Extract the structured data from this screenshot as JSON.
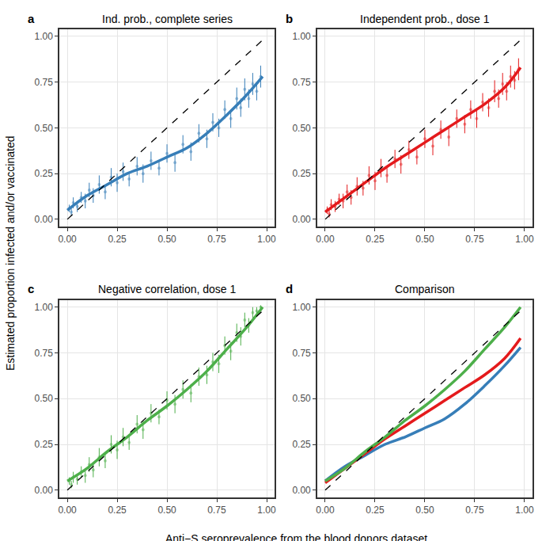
{
  "chart_data": {
    "type": "scatter",
    "x_label": "Anti−S seroprevalence from the blood donors dataset",
    "y_label": "Estimated proportion infected and/or vaccinated",
    "xlim": [
      -0.04,
      1.04
    ],
    "ylim": [
      -0.04,
      1.04
    ],
    "xticks": [
      {
        "value": 0,
        "label": "0.00"
      },
      {
        "value": 0.25,
        "label": "0.25"
      },
      {
        "value": 0.5,
        "label": "0.50"
      },
      {
        "value": 0.75,
        "label": "0.75"
      },
      {
        "value": 1,
        "label": "1.00"
      }
    ],
    "yticks": [
      {
        "value": 0,
        "label": "0.00"
      },
      {
        "value": 0.25,
        "label": "0.25"
      },
      {
        "value": 0.5,
        "label": "0.50"
      },
      {
        "value": 0.75,
        "label": "0.75"
      },
      {
        "value": 1,
        "label": "1.00"
      }
    ],
    "grid": true,
    "panels": [
      {
        "label": "a",
        "title": "Ind. prob., complete series",
        "series": [
          {
            "type": "scatter",
            "color": "#377eb8",
            "marker": "circle",
            "x": [
              0.01,
              0.02,
              0.03,
              0.05,
              0.07,
              0.09,
              0.11,
              0.13,
              0.16,
              0.19,
              0.22,
              0.25,
              0.28,
              0.31,
              0.35,
              0.38,
              0.42,
              0.46,
              0.5,
              0.54,
              0.58,
              0.62,
              0.66,
              0.7,
              0.73,
              0.76,
              0.79,
              0.82,
              0.85,
              0.87,
              0.89,
              0.91,
              0.93,
              0.95,
              0.97
            ],
            "values": [
              0.06,
              0.04,
              0.09,
              0.07,
              0.12,
              0.1,
              0.16,
              0.13,
              0.19,
              0.15,
              0.23,
              0.2,
              0.26,
              0.22,
              0.29,
              0.25,
              0.32,
              0.28,
              0.36,
              0.31,
              0.41,
              0.37,
              0.47,
              0.44,
              0.53,
              0.5,
              0.6,
              0.55,
              0.66,
              0.61,
              0.71,
              0.66,
              0.74,
              0.7,
              0.78
            ],
            "error": [
              0.02,
              0.02,
              0.03,
              0.03,
              0.03,
              0.04,
              0.04,
              0.04,
              0.05,
              0.04,
              0.05,
              0.05,
              0.05,
              0.04,
              0.05,
              0.05,
              0.05,
              0.04,
              0.05,
              0.05,
              0.05,
              0.05,
              0.05,
              0.05,
              0.05,
              0.05,
              0.05,
              0.05,
              0.06,
              0.05,
              0.06,
              0.05,
              0.06,
              0.05,
              0.06
            ]
          },
          {
            "type": "line",
            "color": "#377eb8",
            "line_style": "solid",
            "x": [
              0,
              0.1,
              0.2,
              0.3,
              0.4,
              0.5,
              0.6,
              0.7,
              0.8,
              0.9,
              0.98
            ],
            "values": [
              0.05,
              0.13,
              0.19,
              0.25,
              0.29,
              0.34,
              0.39,
              0.47,
              0.57,
              0.68,
              0.78
            ]
          },
          {
            "type": "line",
            "color": "#000000",
            "line_style": "dashed",
            "x": [
              0,
              1
            ],
            "values": [
              0,
              1
            ]
          }
        ]
      },
      {
        "label": "b",
        "title": "Independent prob., dose 1",
        "series": [
          {
            "type": "scatter",
            "color": "#e41a1c",
            "marker": "circle",
            "x": [
              0.01,
              0.02,
              0.03,
              0.05,
              0.07,
              0.09,
              0.11,
              0.13,
              0.16,
              0.19,
              0.22,
              0.25,
              0.28,
              0.31,
              0.35,
              0.38,
              0.42,
              0.46,
              0.5,
              0.54,
              0.58,
              0.62,
              0.66,
              0.7,
              0.73,
              0.76,
              0.79,
              0.82,
              0.85,
              0.87,
              0.89,
              0.91,
              0.93,
              0.95,
              0.97
            ],
            "values": [
              0.05,
              0.03,
              0.08,
              0.07,
              0.11,
              0.1,
              0.15,
              0.12,
              0.18,
              0.17,
              0.24,
              0.21,
              0.28,
              0.24,
              0.33,
              0.3,
              0.38,
              0.34,
              0.44,
              0.4,
              0.49,
              0.45,
              0.55,
              0.52,
              0.6,
              0.55,
              0.64,
              0.61,
              0.7,
              0.66,
              0.74,
              0.7,
              0.78,
              0.76,
              0.82
            ],
            "error": [
              0.02,
              0.02,
              0.03,
              0.03,
              0.03,
              0.04,
              0.04,
              0.04,
              0.05,
              0.04,
              0.05,
              0.05,
              0.05,
              0.04,
              0.05,
              0.05,
              0.05,
              0.04,
              0.05,
              0.05,
              0.05,
              0.05,
              0.05,
              0.05,
              0.05,
              0.05,
              0.05,
              0.05,
              0.06,
              0.05,
              0.06,
              0.05,
              0.06,
              0.05,
              0.06
            ]
          },
          {
            "type": "line",
            "color": "#e41a1c",
            "line_style": "solid",
            "x": [
              0,
              0.1,
              0.2,
              0.3,
              0.4,
              0.5,
              0.6,
              0.7,
              0.8,
              0.9,
              0.98
            ],
            "values": [
              0.04,
              0.12,
              0.2,
              0.28,
              0.35,
              0.42,
              0.49,
              0.56,
              0.63,
              0.72,
              0.83
            ]
          },
          {
            "type": "line",
            "color": "#000000",
            "line_style": "dashed",
            "x": [
              0,
              1
            ],
            "values": [
              0,
              1
            ]
          }
        ]
      },
      {
        "label": "c",
        "title": "Negative correlation, dose 1",
        "series": [
          {
            "type": "scatter",
            "color": "#4daf4a",
            "marker": "circle",
            "x": [
              0.01,
              0.02,
              0.03,
              0.05,
              0.07,
              0.09,
              0.11,
              0.13,
              0.16,
              0.19,
              0.22,
              0.25,
              0.28,
              0.31,
              0.35,
              0.38,
              0.42,
              0.46,
              0.5,
              0.54,
              0.58,
              0.62,
              0.66,
              0.7,
              0.73,
              0.76,
              0.79,
              0.82,
              0.85,
              0.87,
              0.89,
              0.91,
              0.93,
              0.95,
              0.97
            ],
            "values": [
              0.05,
              0.03,
              0.07,
              0.06,
              0.1,
              0.08,
              0.14,
              0.11,
              0.18,
              0.16,
              0.25,
              0.22,
              0.29,
              0.26,
              0.36,
              0.33,
              0.42,
              0.4,
              0.49,
              0.47,
              0.55,
              0.53,
              0.62,
              0.63,
              0.7,
              0.69,
              0.79,
              0.76,
              0.86,
              0.84,
              0.93,
              0.9,
              0.97,
              0.98,
              1.0
            ],
            "error": [
              0.02,
              0.02,
              0.03,
              0.03,
              0.03,
              0.04,
              0.04,
              0.04,
              0.05,
              0.04,
              0.05,
              0.05,
              0.05,
              0.04,
              0.05,
              0.05,
              0.05,
              0.04,
              0.05,
              0.05,
              0.05,
              0.05,
              0.05,
              0.05,
              0.05,
              0.05,
              0.05,
              0.05,
              0.05,
              0.05,
              0.04,
              0.04,
              0.03,
              0.02,
              0.01
            ]
          },
          {
            "type": "line",
            "color": "#4daf4a",
            "line_style": "solid",
            "x": [
              0,
              0.1,
              0.2,
              0.3,
              0.4,
              0.5,
              0.6,
              0.7,
              0.8,
              0.9,
              0.98
            ],
            "values": [
              0.05,
              0.12,
              0.21,
              0.29,
              0.38,
              0.46,
              0.55,
              0.65,
              0.77,
              0.89,
              1.0
            ]
          },
          {
            "type": "line",
            "color": "#000000",
            "line_style": "dashed",
            "x": [
              0,
              1
            ],
            "values": [
              0,
              1
            ]
          }
        ]
      },
      {
        "label": "d",
        "title": "Comparison",
        "series": [
          {
            "type": "line",
            "color": "#377eb8",
            "line_style": "solid",
            "x": [
              0,
              0.1,
              0.2,
              0.3,
              0.4,
              0.5,
              0.6,
              0.7,
              0.8,
              0.9,
              0.98
            ],
            "values": [
              0.05,
              0.13,
              0.19,
              0.25,
              0.29,
              0.34,
              0.39,
              0.47,
              0.57,
              0.68,
              0.78
            ]
          },
          {
            "type": "line",
            "color": "#e41a1c",
            "line_style": "solid",
            "x": [
              0,
              0.1,
              0.2,
              0.3,
              0.4,
              0.5,
              0.6,
              0.7,
              0.8,
              0.9,
              0.98
            ],
            "values": [
              0.04,
              0.12,
              0.2,
              0.28,
              0.35,
              0.42,
              0.49,
              0.56,
              0.63,
              0.72,
              0.83
            ]
          },
          {
            "type": "line",
            "color": "#4daf4a",
            "line_style": "solid",
            "x": [
              0,
              0.1,
              0.2,
              0.3,
              0.4,
              0.5,
              0.6,
              0.7,
              0.8,
              0.9,
              0.98
            ],
            "values": [
              0.05,
              0.12,
              0.21,
              0.29,
              0.38,
              0.46,
              0.55,
              0.65,
              0.77,
              0.89,
              1.0
            ]
          },
          {
            "type": "line",
            "color": "#000000",
            "line_style": "dashed",
            "x": [
              0,
              1
            ],
            "values": [
              0,
              1
            ]
          }
        ]
      }
    ]
  }
}
